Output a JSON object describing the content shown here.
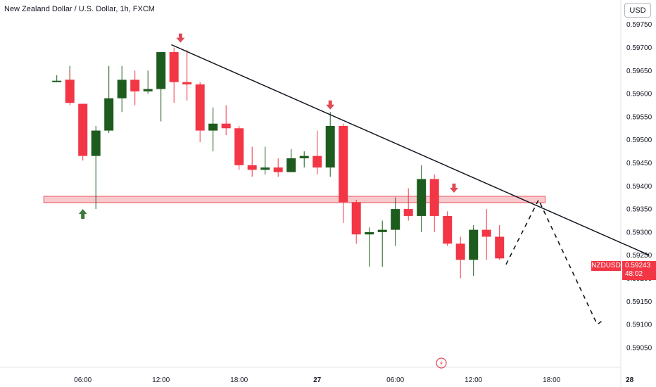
{
  "header": {
    "title": "New Zealand Dollar / U.S. Dollar, 1h, FXCM",
    "currency_button": "USD"
  },
  "price_label": {
    "symbol": "NZDUSD",
    "price": "0.59243",
    "countdown": "48:02"
  },
  "colors": {
    "up": "#1e5b1e",
    "down": "#f23645",
    "zone_fill": "#f7c9cc",
    "zone_border": "#e8545f",
    "trendline": "#131722",
    "arrow_up": "#3b7a3b",
    "arrow_down": "#e04a55"
  },
  "chart_data": {
    "type": "candlestick",
    "title": "New Zealand Dollar / U.S. Dollar, 1h, FXCM",
    "ylim": [
      0.5903,
      0.5978
    ],
    "y_ticks": [
      "0.59750",
      "0.59700",
      "0.59650",
      "0.59600",
      "0.59550",
      "0.59500",
      "0.59450",
      "0.59400",
      "0.59350",
      "0.59300",
      "0.59250",
      "0.59200",
      "0.59150",
      "0.59100",
      "0.59050"
    ],
    "x_ticks": [
      {
        "label": "06:00",
        "x": 6,
        "bold": false
      },
      {
        "label": "12:00",
        "x": 12,
        "bold": false
      },
      {
        "label": "18:00",
        "x": 18,
        "bold": false
      },
      {
        "label": "27",
        "x": 24,
        "bold": true
      },
      {
        "label": "06:00",
        "x": 30,
        "bold": false
      },
      {
        "label": "12:00",
        "x": 36,
        "bold": false
      },
      {
        "label": "18:00",
        "x": 42,
        "bold": false
      },
      {
        "label": "28",
        "x": 48,
        "bold": true
      }
    ],
    "candles": [
      {
        "x": 5,
        "o": 0.5963,
        "h": 0.5966,
        "l": 0.5963,
        "c": 0.5963
      },
      {
        "x": 4,
        "o": 0.59625,
        "h": 0.5964,
        "l": 0.59625,
        "c": 0.59628
      },
      {
        "x": 5,
        "o": 0.5963,
        "h": 0.59652,
        "l": 0.59575,
        "c": 0.5958
      },
      {
        "x": 6,
        "o": 0.59578,
        "h": 0.59578,
        "l": 0.59455,
        "c": 0.59465
      },
      {
        "x": 7,
        "o": 0.59465,
        "h": 0.5953,
        "l": 0.5935,
        "c": 0.5952
      },
      {
        "x": 8,
        "o": 0.5952,
        "h": 0.5966,
        "l": 0.59515,
        "c": 0.5959
      },
      {
        "x": 9,
        "o": 0.5959,
        "h": 0.5966,
        "l": 0.5956,
        "c": 0.5963
      },
      {
        "x": 10,
        "o": 0.5963,
        "h": 0.5965,
        "l": 0.59575,
        "c": 0.59605
      },
      {
        "x": 11,
        "o": 0.59605,
        "h": 0.5965,
        "l": 0.596,
        "c": 0.5961
      },
      {
        "x": 12,
        "o": 0.5961,
        "h": 0.59685,
        "l": 0.5954,
        "c": 0.5969
      },
      {
        "x": 13,
        "o": 0.5969,
        "h": 0.597,
        "l": 0.5958,
        "c": 0.59625
      },
      {
        "x": 14,
        "o": 0.59625,
        "h": 0.59695,
        "l": 0.59585,
        "c": 0.5962
      },
      {
        "x": 15,
        "o": 0.5962,
        "h": 0.59625,
        "l": 0.59495,
        "c": 0.5952
      },
      {
        "x": 16,
        "o": 0.5952,
        "h": 0.5957,
        "l": 0.59475,
        "c": 0.59535
      },
      {
        "x": 17,
        "o": 0.59535,
        "h": 0.59575,
        "l": 0.5951,
        "c": 0.59525
      },
      {
        "x": 18,
        "o": 0.59525,
        "h": 0.5953,
        "l": 0.59435,
        "c": 0.59445
      },
      {
        "x": 19,
        "o": 0.59445,
        "h": 0.59485,
        "l": 0.5942,
        "c": 0.59435
      },
      {
        "x": 20,
        "o": 0.59435,
        "h": 0.59485,
        "l": 0.59425,
        "c": 0.5944
      },
      {
        "x": 21,
        "o": 0.5944,
        "h": 0.5946,
        "l": 0.5942,
        "c": 0.5943
      },
      {
        "x": 22,
        "o": 0.5943,
        "h": 0.5948,
        "l": 0.5943,
        "c": 0.5946
      },
      {
        "x": 23,
        "o": 0.5946,
        "h": 0.59475,
        "l": 0.5944,
        "c": 0.59465
      },
      {
        "x": 24,
        "o": 0.59465,
        "h": 0.5952,
        "l": 0.59425,
        "c": 0.5944
      },
      {
        "x": 25,
        "o": 0.5944,
        "h": 0.5956,
        "l": 0.5942,
        "c": 0.5953
      },
      {
        "x": 26,
        "o": 0.5953,
        "h": 0.59535,
        "l": 0.5932,
        "c": 0.59365
      },
      {
        "x": 27,
        "o": 0.59365,
        "h": 0.5937,
        "l": 0.59275,
        "c": 0.59295
      },
      {
        "x": 28,
        "o": 0.59295,
        "h": 0.5931,
        "l": 0.59225,
        "c": 0.593
      },
      {
        "x": 29,
        "o": 0.593,
        "h": 0.59325,
        "l": 0.59225,
        "c": 0.59305
      },
      {
        "x": 30,
        "o": 0.59305,
        "h": 0.59375,
        "l": 0.5927,
        "c": 0.5935
      },
      {
        "x": 31,
        "o": 0.5935,
        "h": 0.59395,
        "l": 0.59325,
        "c": 0.59335
      },
      {
        "x": 32,
        "o": 0.59335,
        "h": 0.59445,
        "l": 0.593,
        "c": 0.59415
      },
      {
        "x": 33,
        "o": 0.59415,
        "h": 0.59425,
        "l": 0.593,
        "c": 0.59335
      },
      {
        "x": 34,
        "o": 0.59335,
        "h": 0.59345,
        "l": 0.5927,
        "c": 0.59275
      },
      {
        "x": 35,
        "o": 0.59275,
        "h": 0.5929,
        "l": 0.592,
        "c": 0.5924
      },
      {
        "x": 36,
        "o": 0.5924,
        "h": 0.59315,
        "l": 0.59205,
        "c": 0.59305
      },
      {
        "x": 37,
        "o": 0.59305,
        "h": 0.5935,
        "l": 0.5924,
        "c": 0.5929
      },
      {
        "x": 38,
        "o": 0.5929,
        "h": 0.59315,
        "l": 0.5924,
        "c": 0.59243
      }
    ],
    "support_zone": {
      "y_top": 0.5937,
      "y_bottom": 0.59362,
      "x_start": 3,
      "x_end": 41.5
    },
    "trendline": {
      "x1": 12.8,
      "y1": 0.59706,
      "x2": 49.5,
      "y2": 0.5925
    },
    "projection": [
      {
        "x": 38.5,
        "y": 0.5923
      },
      {
        "x": 41,
        "y": 0.5937
      },
      {
        "x": 45.5,
        "y": 0.591
      },
      {
        "x": 46,
        "y": 0.5911
      }
    ],
    "arrows": [
      {
        "dir": "up",
        "x": 6,
        "y": 0.5935
      },
      {
        "dir": "down",
        "x": 13.5,
        "y": 0.59715
      },
      {
        "dir": "down",
        "x": 25,
        "y": 0.5957
      },
      {
        "dir": "down",
        "x": 34.5,
        "y": 0.5939
      }
    ]
  }
}
